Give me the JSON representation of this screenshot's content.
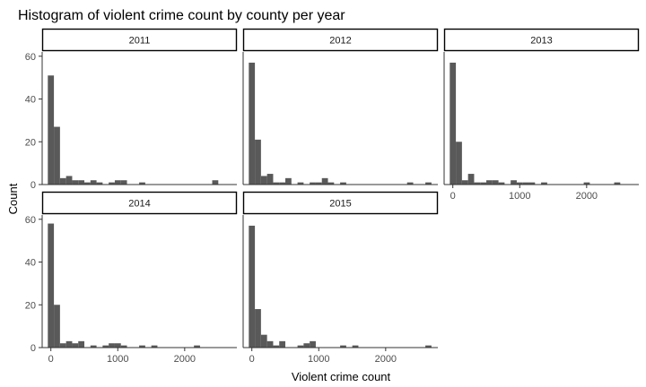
{
  "chart_data": {
    "type": "bar",
    "title": "Histogram of violent crime count by county per year",
    "xlabel": "Violent crime count",
    "ylabel": "Count",
    "facet_layout": "3 columns x 2 rows, shared axes",
    "grid": false,
    "legend": "none",
    "bar_color": "#595959",
    "strip_fill": "#ffffff",
    "strip_border": "#000000",
    "bin_width": 91,
    "bin_centers": [
      0,
      91,
      182,
      273,
      364,
      455,
      546,
      637,
      728,
      819,
      910,
      1001,
      1092,
      1183,
      1274,
      1365,
      1456,
      1547,
      1638,
      1729,
      1820,
      1911,
      2002,
      2093,
      2184,
      2275,
      2366,
      2457,
      2548,
      2639
    ],
    "xlim": [
      -130,
      2780
    ],
    "ylim": [
      0,
      62
    ],
    "x_ticks": [
      0,
      1000,
      2000
    ],
    "x_tick_labels": [
      "0",
      "1000",
      "2000"
    ],
    "y_ticks": [
      0,
      20,
      40,
      60
    ],
    "y_tick_labels": [
      "0",
      "20",
      "40",
      "60"
    ],
    "panels": [
      {
        "name": "2011",
        "counts": [
          51,
          27,
          3,
          4,
          2,
          2,
          1,
          2,
          1,
          0,
          1,
          2,
          2,
          0,
          0,
          1,
          0,
          0,
          0,
          0,
          0,
          0,
          0,
          0,
          0,
          0,
          0,
          2,
          0,
          0
        ]
      },
      {
        "name": "2012",
        "counts": [
          57,
          21,
          4,
          5,
          1,
          1,
          3,
          0,
          1,
          0,
          1,
          1,
          3,
          1,
          0,
          1,
          0,
          0,
          0,
          0,
          0,
          0,
          0,
          0,
          0,
          0,
          1,
          0,
          0,
          1
        ]
      },
      {
        "name": "2013",
        "counts": [
          57,
          20,
          2,
          5,
          1,
          1,
          2,
          2,
          1,
          0,
          2,
          1,
          1,
          1,
          0,
          1,
          0,
          0,
          0,
          0,
          0,
          0,
          1,
          0,
          0,
          0,
          0,
          1,
          0,
          0
        ]
      },
      {
        "name": "2014",
        "counts": [
          58,
          20,
          2,
          3,
          2,
          3,
          0,
          1,
          0,
          1,
          2,
          2,
          1,
          0,
          0,
          1,
          0,
          1,
          0,
          0,
          0,
          0,
          0,
          0,
          1,
          0,
          0,
          0,
          0,
          0
        ]
      },
      {
        "name": "2015",
        "counts": [
          57,
          18,
          6,
          3,
          1,
          3,
          0,
          0,
          1,
          2,
          3,
          0,
          0,
          0,
          0,
          1,
          0,
          1,
          0,
          0,
          0,
          0,
          0,
          0,
          0,
          0,
          0,
          0,
          0,
          1
        ]
      }
    ]
  }
}
